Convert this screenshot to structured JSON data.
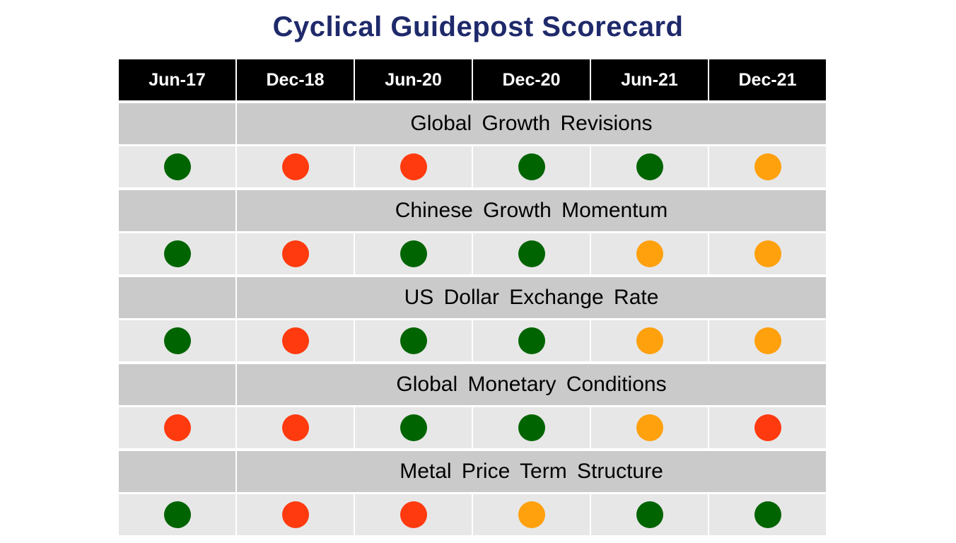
{
  "title": "Cyclical Guidepost Scorecard",
  "periods": [
    "Jun-17",
    "Dec-18",
    "Jun-20",
    "Dec-20",
    "Jun-21",
    "Dec-21"
  ],
  "colors": {
    "green": "#006400",
    "red": "#ff3a0f",
    "orange": "#ffa00d"
  },
  "indicators": [
    {
      "label": "Global Growth Revisions",
      "status": [
        "green",
        "red",
        "red",
        "green",
        "green",
        "orange"
      ]
    },
    {
      "label": "Chinese Growth Momentum",
      "status": [
        "green",
        "red",
        "green",
        "green",
        "orange",
        "orange"
      ]
    },
    {
      "label": "US Dollar Exchange Rate",
      "status": [
        "green",
        "red",
        "green",
        "green",
        "orange",
        "orange"
      ]
    },
    {
      "label": "Global Monetary Conditions",
      "status": [
        "red",
        "red",
        "green",
        "green",
        "orange",
        "red"
      ]
    },
    {
      "label": "Metal Price Term Structure",
      "status": [
        "green",
        "red",
        "red",
        "orange",
        "green",
        "green"
      ]
    }
  ]
}
